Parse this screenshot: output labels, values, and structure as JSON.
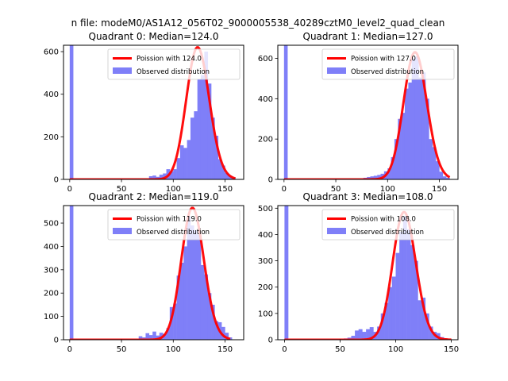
{
  "suptitle": "n file: modeM0/AS1A12_056T02_9000005538_40289cztM0_level2_quad_clean",
  "colors": {
    "hist": "#7f7ff8",
    "fit": "#ff0000",
    "frame": "#000000"
  },
  "chart_data": [
    {
      "type": "bar",
      "title": "Quadrant 0: Median=124.0",
      "xlim": [
        -6,
        168
      ],
      "ylim": [
        0,
        630
      ],
      "xticks": [
        0,
        50,
        100,
        150
      ],
      "yticks": [
        0,
        200,
        400,
        600
      ],
      "legend": {
        "location": "top-right",
        "entries": [
          "Poission with 124.0",
          "Observed distribution"
        ]
      },
      "fit": {
        "label": "Poission with 124.0",
        "mean": 124.0,
        "peak": 620,
        "x_range": [
          0,
          160
        ]
      },
      "bin_width": 3.3,
      "bins": [
        [
          0,
          630
        ],
        [
          3.3,
          3
        ],
        [
          6.6,
          3
        ],
        [
          10,
          3
        ],
        [
          13.3,
          3
        ],
        [
          16.6,
          3
        ],
        [
          20,
          3
        ],
        [
          23.3,
          3
        ],
        [
          26.6,
          3
        ],
        [
          30,
          3
        ],
        [
          33.3,
          3
        ],
        [
          36.6,
          3
        ],
        [
          40,
          3
        ],
        [
          43.3,
          3
        ],
        [
          46.6,
          3
        ],
        [
          50,
          3
        ],
        [
          53.3,
          3
        ],
        [
          56.6,
          3
        ],
        [
          60,
          3
        ],
        [
          63.3,
          3
        ],
        [
          66.6,
          3
        ],
        [
          70,
          3
        ],
        [
          73.3,
          3
        ],
        [
          76.6,
          15
        ],
        [
          80,
          18
        ],
        [
          83.3,
          12
        ],
        [
          86.6,
          22
        ],
        [
          90,
          28
        ],
        [
          93.3,
          48
        ],
        [
          96.6,
          38
        ],
        [
          100,
          48
        ],
        [
          103.3,
          100
        ],
        [
          106.6,
          160
        ],
        [
          110,
          148
        ],
        [
          113.3,
          185
        ],
        [
          116.6,
          290
        ],
        [
          120,
          320
        ],
        [
          123.3,
          470
        ],
        [
          126.6,
          490
        ],
        [
          130,
          600
        ],
        [
          133.3,
          450
        ],
        [
          136.6,
          290
        ],
        [
          140,
          205
        ],
        [
          143.3,
          95
        ],
        [
          146.6,
          65
        ],
        [
          150,
          30
        ],
        [
          153.3,
          18
        ],
        [
          156.6,
          10
        ]
      ]
    },
    {
      "type": "bar",
      "title": "Quadrant 1: Median=127.0",
      "xlim": [
        -6,
        168
      ],
      "ylim": [
        0,
        665
      ],
      "xticks": [
        0,
        50,
        100,
        150
      ],
      "yticks": [
        0,
        200,
        400,
        600
      ],
      "legend": {
        "location": "top-right",
        "entries": [
          "Poission with 127.0",
          "Observed distribution"
        ]
      },
      "fit": {
        "label": "Poission with 127.0",
        "mean": 127.0,
        "peak": 630,
        "x_range": [
          0,
          160
        ]
      },
      "bin_width": 3.3,
      "bins": [
        [
          0,
          665
        ],
        [
          3.3,
          3
        ],
        [
          6.6,
          3
        ],
        [
          10,
          3
        ],
        [
          13.3,
          3
        ],
        [
          16.6,
          3
        ],
        [
          20,
          3
        ],
        [
          23.3,
          3
        ],
        [
          26.6,
          3
        ],
        [
          30,
          3
        ],
        [
          33.3,
          3
        ],
        [
          36.6,
          3
        ],
        [
          40,
          3
        ],
        [
          43.3,
          3
        ],
        [
          46.6,
          3
        ],
        [
          50,
          3
        ],
        [
          53.3,
          3
        ],
        [
          56.6,
          3
        ],
        [
          60,
          3
        ],
        [
          63.3,
          3
        ],
        [
          66.6,
          3
        ],
        [
          70,
          3
        ],
        [
          73.3,
          3
        ],
        [
          76.6,
          8
        ],
        [
          80,
          12
        ],
        [
          83.3,
          15
        ],
        [
          86.6,
          18
        ],
        [
          90,
          22
        ],
        [
          93.3,
          28
        ],
        [
          96.6,
          40
        ],
        [
          100,
          55
        ],
        [
          103.3,
          110
        ],
        [
          106.6,
          200
        ],
        [
          110,
          300
        ],
        [
          113.3,
          330
        ],
        [
          116.6,
          450
        ],
        [
          120,
          480
        ],
        [
          123.3,
          600
        ],
        [
          126.6,
          610
        ],
        [
          130,
          505
        ],
        [
          133.3,
          530
        ],
        [
          136.6,
          400
        ],
        [
          140,
          200
        ],
        [
          143.3,
          160
        ],
        [
          146.6,
          90
        ],
        [
          150,
          38
        ],
        [
          153.3,
          15
        ],
        [
          156.6,
          8
        ]
      ]
    },
    {
      "type": "bar",
      "title": "Quadrant 2: Median=119.0",
      "xlim": [
        -6,
        168
      ],
      "ylim": [
        0,
        575
      ],
      "xticks": [
        0,
        50,
        100,
        150
      ],
      "yticks": [
        0,
        100,
        200,
        300,
        400,
        500
      ],
      "legend": {
        "location": "top-right",
        "entries": [
          "Poission with 119.0",
          "Observed distribution"
        ]
      },
      "fit": {
        "label": "Poission with 119.0",
        "mean": 119.0,
        "peak": 565,
        "x_range": [
          0,
          155
        ]
      },
      "bin_width": 3.3,
      "bins": [
        [
          0,
          575
        ],
        [
          3.3,
          3
        ],
        [
          6.6,
          3
        ],
        [
          10,
          3
        ],
        [
          13.3,
          3
        ],
        [
          16.6,
          3
        ],
        [
          20,
          3
        ],
        [
          23.3,
          3
        ],
        [
          26.6,
          3
        ],
        [
          30,
          3
        ],
        [
          33.3,
          3
        ],
        [
          36.6,
          3
        ],
        [
          40,
          3
        ],
        [
          43.3,
          3
        ],
        [
          46.6,
          3
        ],
        [
          50,
          3
        ],
        [
          53.3,
          3
        ],
        [
          56.6,
          3
        ],
        [
          60,
          3
        ],
        [
          63.3,
          3
        ],
        [
          66.6,
          15
        ],
        [
          70,
          10
        ],
        [
          73.3,
          28
        ],
        [
          76.6,
          20
        ],
        [
          80,
          35
        ],
        [
          83.3,
          18
        ],
        [
          86.6,
          30
        ],
        [
          90,
          25
        ],
        [
          93.3,
          50
        ],
        [
          96.6,
          140
        ],
        [
          100,
          155
        ],
        [
          103.3,
          275
        ],
        [
          106.6,
          330
        ],
        [
          110,
          400
        ],
        [
          113.3,
          530
        ],
        [
          116.6,
          490
        ],
        [
          120,
          470
        ],
        [
          123.3,
          450
        ],
        [
          126.6,
          320
        ],
        [
          130,
          280
        ],
        [
          133.3,
          200
        ],
        [
          136.6,
          150
        ],
        [
          140,
          80
        ],
        [
          143.3,
          75
        ],
        [
          146.6,
          55
        ],
        [
          150,
          30
        ],
        [
          153.3,
          10
        ]
      ]
    },
    {
      "type": "bar",
      "title": "Quadrant 3: Median=108.0",
      "xlim": [
        -6,
        156
      ],
      "ylim": [
        0,
        510
      ],
      "xticks": [
        0,
        50,
        100,
        150
      ],
      "yticks": [
        0,
        100,
        200,
        300,
        400,
        500
      ],
      "legend": {
        "location": "top-right",
        "entries": [
          "Poission with 108.0",
          "Observed distribution"
        ]
      },
      "fit": {
        "label": "Poission with 108.0",
        "mean": 108.0,
        "peak": 485,
        "x_range": [
          0,
          150
        ]
      },
      "bin_width": 3.3,
      "bins": [
        [
          0,
          510
        ],
        [
          3.3,
          3
        ],
        [
          6.6,
          3
        ],
        [
          10,
          3
        ],
        [
          13.3,
          3
        ],
        [
          16.6,
          3
        ],
        [
          20,
          3
        ],
        [
          23.3,
          3
        ],
        [
          26.6,
          3
        ],
        [
          30,
          3
        ],
        [
          33.3,
          3
        ],
        [
          36.6,
          3
        ],
        [
          40,
          3
        ],
        [
          43.3,
          3
        ],
        [
          46.6,
          3
        ],
        [
          50,
          3
        ],
        [
          53.3,
          5
        ],
        [
          56.6,
          8
        ],
        [
          60,
          15
        ],
        [
          63.3,
          35
        ],
        [
          66.6,
          40
        ],
        [
          70,
          30
        ],
        [
          73.3,
          40
        ],
        [
          76.6,
          48
        ],
        [
          80,
          30
        ],
        [
          83.3,
          50
        ],
        [
          86.6,
          100
        ],
        [
          90,
          140
        ],
        [
          93.3,
          200
        ],
        [
          96.6,
          240
        ],
        [
          100,
          330
        ],
        [
          103.3,
          410
        ],
        [
          106.6,
          470
        ],
        [
          110,
          420
        ],
        [
          113.3,
          360
        ],
        [
          116.6,
          300
        ],
        [
          120,
          150
        ],
        [
          123.3,
          160
        ],
        [
          126.6,
          100
        ],
        [
          130,
          50
        ],
        [
          133.3,
          30
        ],
        [
          136.6,
          25
        ],
        [
          140,
          10
        ],
        [
          143.3,
          5
        ]
      ]
    }
  ]
}
